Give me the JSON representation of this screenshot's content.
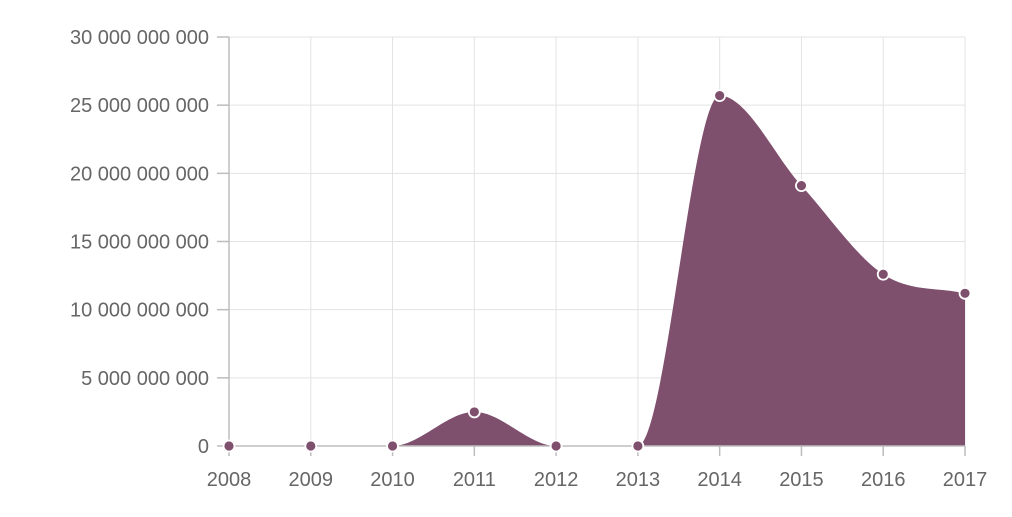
{
  "chart_data": {
    "type": "area",
    "title": "",
    "xlabel": "",
    "ylabel": "",
    "x": [
      "2008",
      "2009",
      "2010",
      "2011",
      "2012",
      "2013",
      "2014",
      "2015",
      "2016",
      "2017"
    ],
    "series": [
      {
        "values": [
          0,
          0,
          0,
          2500000000,
          0,
          0,
          25700000000,
          19100000000,
          12600000000,
          11200000000
        ]
      }
    ],
    "ylim": [
      0,
      30000000000
    ],
    "yticks": [
      0,
      5000000000,
      10000000000,
      15000000000,
      20000000000,
      25000000000,
      30000000000
    ],
    "ytick_labels": [
      "0",
      "5 000 000 000",
      "10 000 000 000",
      "15 000 000 000",
      "20 000 000 000",
      "25 000 000 000",
      "30 000 000 000"
    ],
    "grid": true,
    "legend": "none",
    "colors": {
      "fill": "#7f4f6e",
      "point": "#7f4f6e",
      "point_border": "#ffffff"
    }
  }
}
